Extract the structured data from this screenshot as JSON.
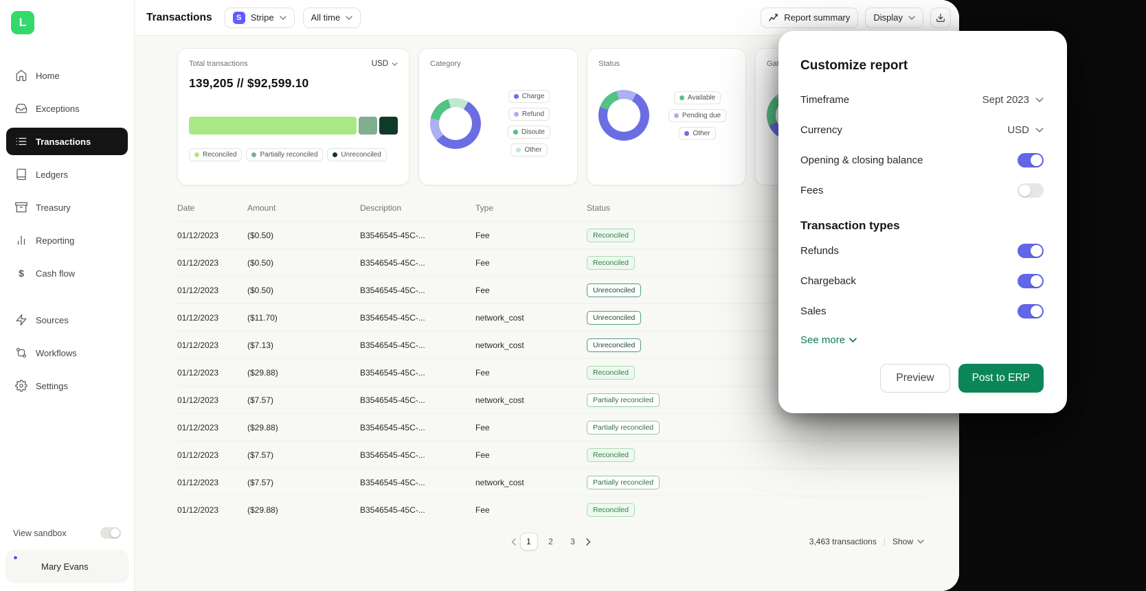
{
  "app": {
    "logo_letter": "L",
    "brand_green": "#35D96B"
  },
  "sidebar": {
    "items": [
      {
        "label": "Home"
      },
      {
        "label": "Exceptions"
      },
      {
        "label": "Transactions"
      },
      {
        "label": "Ledgers"
      },
      {
        "label": "Treasury"
      },
      {
        "label": "Reporting"
      },
      {
        "label": "Cash flow"
      }
    ],
    "secondary_items": [
      {
        "label": "Sources"
      },
      {
        "label": "Workflows"
      },
      {
        "label": "Settings"
      }
    ],
    "sandbox_label": "View sandbox",
    "user_name": "Mary Evans"
  },
  "topbar": {
    "title": "Transactions",
    "source_filter": "Stripe",
    "source_badge_letter": "S",
    "source_badge_color": "#635BFF",
    "time_filter": "All time",
    "report_summary_label": "Report summary",
    "display_label": "Display"
  },
  "cards": {
    "total": {
      "title": "Total transactions",
      "currency": "USD",
      "value": "139,205 // $92,599.10",
      "segments": [
        {
          "label": "Reconciled",
          "color": "#A9E884",
          "value": 82
        },
        {
          "label": "Partially reconciled",
          "color": "#7FAF8F",
          "value": 9
        },
        {
          "label": "Unreconciled",
          "color": "#103A28",
          "value": 9
        }
      ],
      "legend": [
        {
          "label": "Reconciled",
          "color": "#A9E884"
        },
        {
          "label": "Partially reconciled",
          "color": "#7FAF8F"
        },
        {
          "label": "Unreconciled",
          "color": "#103A28"
        }
      ]
    },
    "category": {
      "title": "Category",
      "type": "donut",
      "segments": [
        {
          "label": "Charge",
          "color": "#6B6EE3",
          "value": 55
        },
        {
          "label": "Refund",
          "color": "#AAB0F3",
          "value": 15
        },
        {
          "label": "Disoute",
          "color": "#53C283",
          "value": 17
        },
        {
          "label": "Other",
          "color": "#BFE8CF",
          "value": 13
        }
      ],
      "legend": [
        {
          "label": "Charge",
          "color": "#6B6EE3"
        },
        {
          "label": "Refund",
          "color": "#AAB0F3"
        },
        {
          "label": "Disoute",
          "color": "#53C283"
        },
        {
          "label": "Other",
          "color": "#BFE8CF"
        }
      ]
    },
    "status": {
      "title": "Status",
      "type": "donut",
      "segments": [
        {
          "label": "Other",
          "color": "#6B6EE3",
          "value": 72
        },
        {
          "label": "Available",
          "color": "#53C283",
          "value": 15
        },
        {
          "label": "Pending due",
          "color": "#AAB0F3",
          "value": 13
        }
      ],
      "legend": [
        {
          "label": "Available",
          "color": "#53C283"
        },
        {
          "label": "Pending due",
          "color": "#AAB0F3"
        },
        {
          "label": "Other",
          "color": "#6B6EE3"
        }
      ]
    },
    "gateway": {
      "title": "Gateway",
      "type": "donut",
      "segments": [
        {
          "label": "",
          "color": "#6B6EE3",
          "value": 60
        },
        {
          "label": "",
          "color": "#53C283",
          "value": 20
        },
        {
          "label": "",
          "color": "#AAB0F3",
          "value": 20
        }
      ]
    }
  },
  "table": {
    "columns": [
      "Date",
      "Amount",
      "Description",
      "Type",
      "Status"
    ],
    "rows": [
      {
        "date": "01/12/2023",
        "amount": "($0.50)",
        "description": "B3546545-45C-...",
        "type": "Fee",
        "status": "Reconciled",
        "variant": "reconciled"
      },
      {
        "date": "01/12/2023",
        "amount": "($0.50)",
        "description": "B3546545-45C-...",
        "type": "Fee",
        "status": "Reconciled",
        "variant": "reconciled"
      },
      {
        "date": "01/12/2023",
        "amount": "($0.50)",
        "description": "B3546545-45C-...",
        "type": "Fee",
        "status": "Unreconciled",
        "variant": "unreconciled"
      },
      {
        "date": "01/12/2023",
        "amount": "($11.70)",
        "description": "B3546545-45C-...",
        "type": "network_cost",
        "status": "Unreconciled",
        "variant": "unreconciled"
      },
      {
        "date": "01/12/2023",
        "amount": "($7.13)",
        "description": "B3546545-45C-...",
        "type": "network_cost",
        "status": "Unreconciled",
        "variant": "unreconciled"
      },
      {
        "date": "01/12/2023",
        "amount": "($29.88)",
        "description": "B3546545-45C-...",
        "type": "Fee",
        "status": "Reconciled",
        "variant": "reconciled"
      },
      {
        "date": "01/12/2023",
        "amount": "($7.57)",
        "description": "B3546545-45C-...",
        "type": "network_cost",
        "status": "Partially reconciled",
        "variant": "partial"
      },
      {
        "date": "01/12/2023",
        "amount": "($29.88)",
        "description": "B3546545-45C-...",
        "type": "Fee",
        "status": "Partially reconciled",
        "variant": "partial"
      },
      {
        "date": "01/12/2023",
        "amount": "($7.57)",
        "description": "B3546545-45C-...",
        "type": "Fee",
        "status": "Reconciled",
        "variant": "reconciled"
      },
      {
        "date": "01/12/2023",
        "amount": "($7.57)",
        "description": "B3546545-45C-...",
        "type": "network_cost",
        "status": "Partially reconciled",
        "variant": "partial"
      },
      {
        "date": "01/12/2023",
        "amount": "($29.88)",
        "description": "B3546545-45C-...",
        "type": "Fee",
        "status": "Reconciled",
        "variant": "reconciled"
      }
    ]
  },
  "footer": {
    "pages": [
      "1",
      "2",
      "3"
    ],
    "current_page": "1",
    "count_text": "3,463 transactions",
    "show_label": "Show"
  },
  "overlay": {
    "title": "Customize report",
    "rows": [
      {
        "label": "Timeframe",
        "value": "Sept 2023"
      },
      {
        "label": "Currency",
        "value": "USD"
      },
      {
        "label": "Opening & closing balance",
        "on": true
      },
      {
        "label": "Fees",
        "on": false
      }
    ],
    "section_title": "Transaction types",
    "type_rows": [
      {
        "label": "Refunds",
        "on": true
      },
      {
        "label": "Chargeback",
        "on": true
      },
      {
        "label": "Sales",
        "on": true
      }
    ],
    "see_more_label": "See more",
    "preview_label": "Preview",
    "post_label": "Post to ERP",
    "accent_green": "#0B8659",
    "toggle_on_color": "#6366E8"
  }
}
